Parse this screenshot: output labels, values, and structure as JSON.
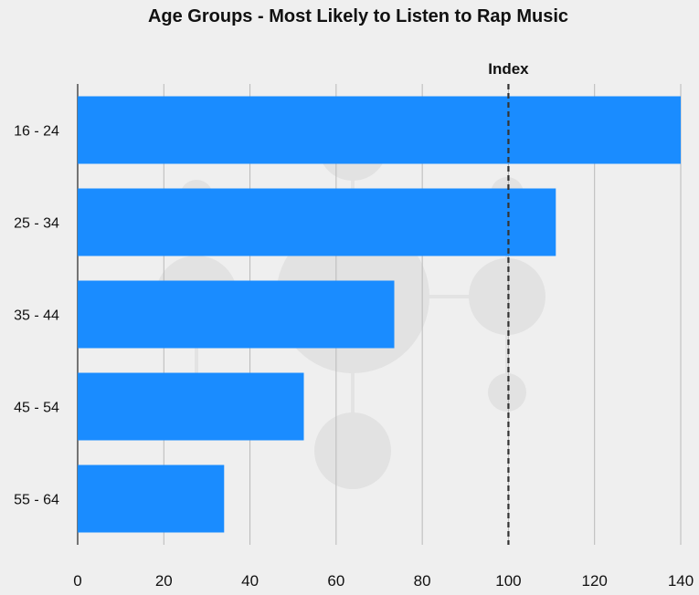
{
  "chart_data": {
    "type": "bar",
    "orientation": "horizontal",
    "title": "Age Groups - Most Likely to Listen to Rap Music",
    "categories": [
      "16 - 24",
      "25 - 34",
      "35 - 44",
      "45 - 54",
      "55 - 64"
    ],
    "values": [
      140,
      111,
      73.5,
      52.5,
      34
    ],
    "xlabel": "",
    "ylabel": "",
    "xlim": [
      0,
      140
    ],
    "xticks": [
      "0",
      "20",
      "40",
      "60",
      "80",
      "100",
      "120",
      "140"
    ],
    "grid": true,
    "reference_line": {
      "label": "Index",
      "value": 100,
      "style": "dashed"
    },
    "colors": {
      "bar": "#1a8cff",
      "background": "#efefef",
      "grid": "#b9b9b9",
      "reference": "#333333"
    }
  }
}
